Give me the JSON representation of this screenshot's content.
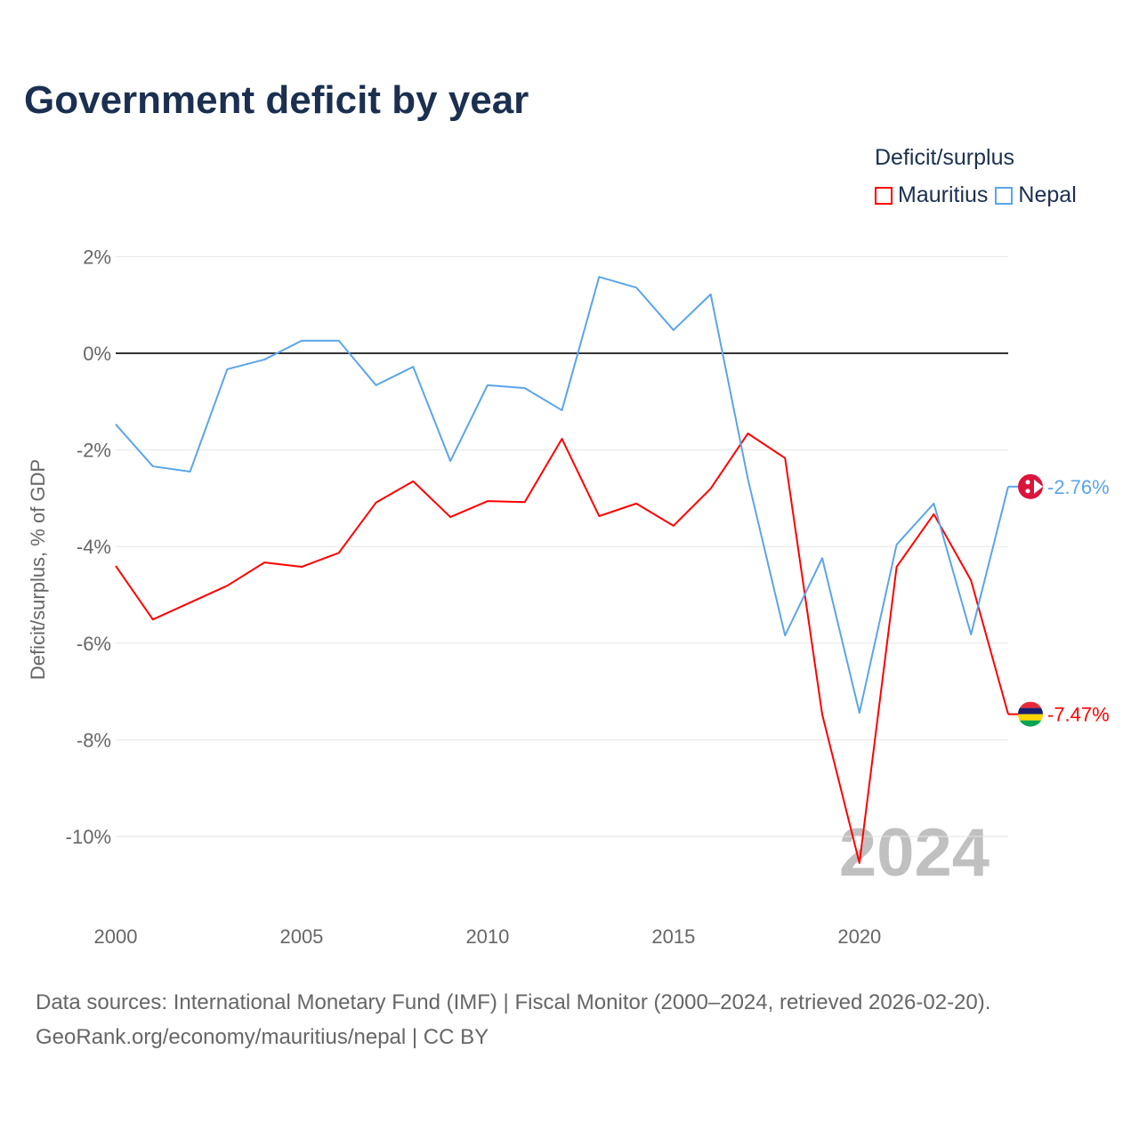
{
  "title": "Government deficit by year",
  "legend": {
    "title": "Deficit/surplus",
    "items": [
      {
        "label": "Mauritius",
        "color": "#ff0000"
      },
      {
        "label": "Nepal",
        "color": "#5aa5ea"
      }
    ]
  },
  "footer": {
    "line1": "Data sources: International Monetary Fund (IMF) | Fiscal Monitor (2000–2024, retrieved 2026-02-20).",
    "line2": "GeoRank.org/economy/mauritius/nepal | CC BY"
  },
  "chart_data": {
    "type": "line",
    "title": "Government deficit by year",
    "ylabel": "Deficit/surplus, % of GDP",
    "xlabel": "",
    "xlim": [
      2000,
      2024
    ],
    "ylim": [
      -11,
      2.5
    ],
    "x_ticks": [
      2000,
      2005,
      2010,
      2015,
      2020
    ],
    "x_tick_labels": [
      "2000",
      "2005",
      "2010",
      "2015",
      "2020"
    ],
    "y_ticks": [
      2,
      0,
      -2,
      -4,
      -6,
      -8,
      -10
    ],
    "y_tick_labels": [
      "2%",
      "0%",
      "-2%",
      "-4%",
      "-6%",
      "-8%",
      "-10%"
    ],
    "year_watermark": "2024",
    "x": [
      2000,
      2001,
      2002,
      2003,
      2004,
      2005,
      2006,
      2007,
      2008,
      2009,
      2010,
      2011,
      2012,
      2013,
      2014,
      2015,
      2016,
      2017,
      2018,
      2019,
      2020,
      2021,
      2022,
      2023,
      2024
    ],
    "series": [
      {
        "name": "Mauritius",
        "color": "#ff0000",
        "end_label": "-7.47%",
        "values": [
          -4.4,
          -5.51,
          -5.16,
          -4.81,
          -4.33,
          -4.42,
          -4.13,
          -3.09,
          -2.65,
          -3.39,
          -3.06,
          -3.08,
          -1.77,
          -3.37,
          -3.11,
          -3.57,
          -2.8,
          -1.66,
          -2.17,
          -7.48,
          -10.55,
          -4.42,
          -3.33,
          -4.7,
          -7.47
        ]
      },
      {
        "name": "Nepal",
        "color": "#5aa5ea",
        "end_label": "-2.76%",
        "values": [
          -1.47,
          -2.34,
          -2.45,
          -0.33,
          -0.13,
          0.26,
          0.26,
          -0.66,
          -0.28,
          -2.23,
          -0.66,
          -0.72,
          -1.18,
          1.58,
          1.36,
          0.48,
          1.22,
          -2.6,
          -5.84,
          -4.24,
          -7.44,
          -3.96,
          -3.11,
          -5.82,
          -2.76
        ]
      }
    ]
  }
}
